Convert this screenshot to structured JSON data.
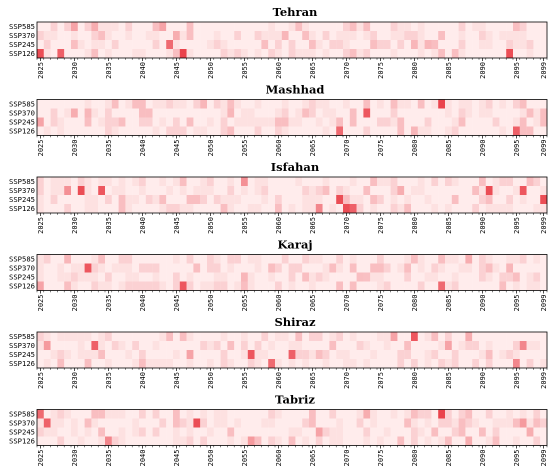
{
  "chart_data": {
    "type": "heatmap",
    "x_start": 2025,
    "x_end": 2099,
    "x_tick_labels": [
      "2025",
      "2030",
      "2035",
      "2040",
      "2045",
      "2050",
      "2055",
      "2060",
      "2065",
      "2070",
      "2075",
      "2080",
      "2085",
      "2090",
      "2095",
      "2099"
    ],
    "rows": [
      "SSP585",
      "SSP370",
      "SSP245",
      "SSP126"
    ],
    "colors": {
      "low": "#fff0f0",
      "high": "#e8303a",
      "frame": "#000000"
    },
    "scale": [
      0,
      1
    ],
    "panels": [
      {
        "title": "Tehran",
        "hot": [
          {
            "row": 3,
            "year": 2025,
            "v": 0.85
          },
          {
            "row": 3,
            "year": 2028,
            "v": 0.75
          },
          {
            "row": 3,
            "year": 2046,
            "v": 0.9
          },
          {
            "row": 3,
            "year": 2094,
            "v": 0.85
          },
          {
            "row": 2,
            "year": 2044,
            "v": 0.7
          },
          {
            "row": 0,
            "year": 2030,
            "v": 0.4
          },
          {
            "row": 0,
            "year": 2033,
            "v": 0.35
          },
          {
            "row": 0,
            "year": 2043,
            "v": 0.4
          },
          {
            "row": 1,
            "year": 2045,
            "v": 0.35
          },
          {
            "row": 2,
            "year": 2080,
            "v": 0.3
          },
          {
            "row": 2,
            "year": 2082,
            "v": 0.3
          },
          {
            "row": 1,
            "year": 2061,
            "v": 0.3
          }
        ]
      },
      {
        "title": "Mashhad",
        "hot": [
          {
            "row": 0,
            "year": 2084,
            "v": 0.9
          },
          {
            "row": 1,
            "year": 2073,
            "v": 0.8
          },
          {
            "row": 3,
            "year": 2069,
            "v": 0.7
          },
          {
            "row": 3,
            "year": 2095,
            "v": 0.75
          },
          {
            "row": 2,
            "year": 2025,
            "v": 0.4
          },
          {
            "row": 1,
            "year": 2030,
            "v": 0.35
          },
          {
            "row": 1,
            "year": 2032,
            "v": 0.3
          },
          {
            "row": 0,
            "year": 2049,
            "v": 0.3
          },
          {
            "row": 1,
            "year": 2053,
            "v": 0.3
          },
          {
            "row": 3,
            "year": 2080,
            "v": 0.3
          }
        ]
      },
      {
        "title": "Isfahan",
        "hot": [
          {
            "row": 1,
            "year": 2031,
            "v": 0.85
          },
          {
            "row": 1,
            "year": 2034,
            "v": 0.8
          },
          {
            "row": 1,
            "year": 2029,
            "v": 0.5
          },
          {
            "row": 2,
            "year": 2069,
            "v": 0.85
          },
          {
            "row": 3,
            "year": 2070,
            "v": 0.85
          },
          {
            "row": 3,
            "year": 2071,
            "v": 0.75
          },
          {
            "row": 1,
            "year": 2091,
            "v": 0.85
          },
          {
            "row": 1,
            "year": 2096,
            "v": 0.8
          },
          {
            "row": 2,
            "year": 2099,
            "v": 0.85
          },
          {
            "row": 0,
            "year": 2055,
            "v": 0.5
          },
          {
            "row": 3,
            "year": 2066,
            "v": 0.55
          },
          {
            "row": 1,
            "year": 2078,
            "v": 0.35
          }
        ]
      },
      {
        "title": "Karaj",
        "hot": [
          {
            "row": 1,
            "year": 2032,
            "v": 0.8
          },
          {
            "row": 3,
            "year": 2046,
            "v": 0.8
          },
          {
            "row": 3,
            "year": 2084,
            "v": 0.7
          },
          {
            "row": 3,
            "year": 2025,
            "v": 0.4
          },
          {
            "row": 0,
            "year": 2029,
            "v": 0.3
          },
          {
            "row": 2,
            "year": 2055,
            "v": 0.3
          },
          {
            "row": 0,
            "year": 2088,
            "v": 0.35
          },
          {
            "row": 1,
            "year": 2094,
            "v": 0.3
          },
          {
            "row": 2,
            "year": 2073,
            "v": 0.25
          }
        ]
      },
      {
        "title": "Shiraz",
        "hot": [
          {
            "row": 0,
            "year": 2080,
            "v": 0.8
          },
          {
            "row": 1,
            "year": 2033,
            "v": 0.75
          },
          {
            "row": 2,
            "year": 2056,
            "v": 0.8
          },
          {
            "row": 2,
            "year": 2062,
            "v": 0.75
          },
          {
            "row": 3,
            "year": 2059,
            "v": 0.7
          },
          {
            "row": 1,
            "year": 2096,
            "v": 0.55
          },
          {
            "row": 3,
            "year": 2095,
            "v": 0.55
          },
          {
            "row": 0,
            "year": 2077,
            "v": 0.4
          },
          {
            "row": 1,
            "year": 2026,
            "v": 0.45
          },
          {
            "row": 1,
            "year": 2085,
            "v": 0.4
          },
          {
            "row": 2,
            "year": 2047,
            "v": 0.4
          },
          {
            "row": 0,
            "year": 2088,
            "v": 0.35
          }
        ]
      },
      {
        "title": "Tabriz",
        "hot": [
          {
            "row": 0,
            "year": 2084,
            "v": 0.9
          },
          {
            "row": 0,
            "year": 2025,
            "v": 0.7
          },
          {
            "row": 1,
            "year": 2026,
            "v": 0.75
          },
          {
            "row": 1,
            "year": 2048,
            "v": 0.85
          },
          {
            "row": 3,
            "year": 2035,
            "v": 0.55
          },
          {
            "row": 3,
            "year": 2056,
            "v": 0.45
          },
          {
            "row": 2,
            "year": 2066,
            "v": 0.4
          },
          {
            "row": 1,
            "year": 2096,
            "v": 0.45
          },
          {
            "row": 2,
            "year": 2097,
            "v": 0.35
          },
          {
            "row": 3,
            "year": 2088,
            "v": 0.35
          },
          {
            "row": 0,
            "year": 2073,
            "v": 0.35
          }
        ]
      }
    ]
  }
}
